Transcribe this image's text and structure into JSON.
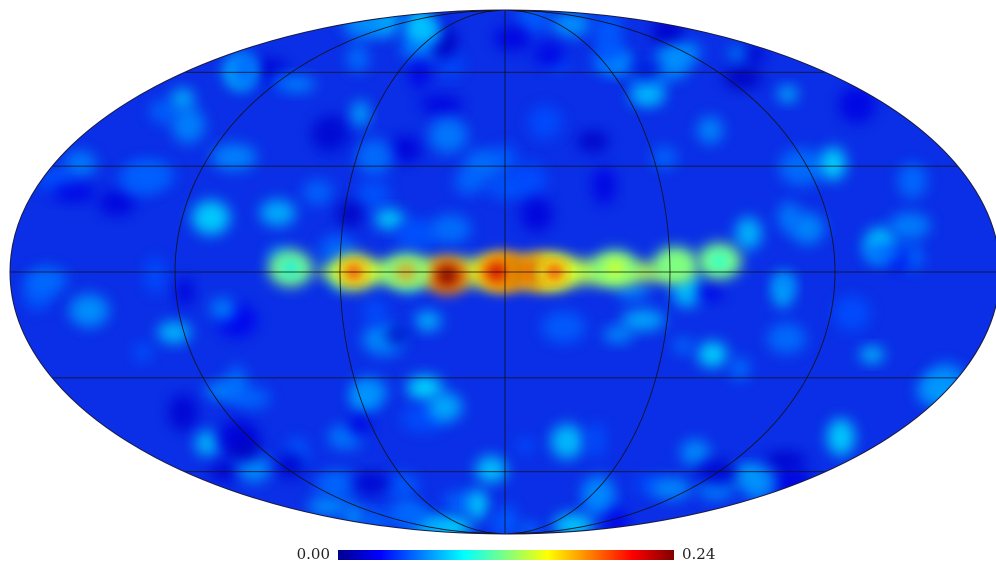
{
  "map": {
    "projection": "mollweide",
    "graticule": {
      "lon_step_deg": 60,
      "lat_step_deg": 30
    },
    "colormap": "jet",
    "features": [
      {
        "lon": 0,
        "lat": 0,
        "width": 260,
        "level": 0.55
      },
      {
        "lon": -12,
        "lat": 0,
        "level": 0.95
      },
      {
        "lon": -18,
        "lat": 0,
        "level": 0.85
      },
      {
        "lon": -1,
        "lat": 0,
        "level": 1.0
      },
      {
        "lon": 3,
        "lat": 0,
        "level": 0.92
      },
      {
        "lon": 21,
        "lat": -1,
        "level": 1.0
      },
      {
        "lon": 36,
        "lat": 0,
        "level": 0.75
      },
      {
        "lon": 55,
        "lat": 0,
        "level": 0.85
      },
      {
        "lon": -40,
        "lat": 1,
        "level": 0.6
      },
      {
        "lon": -62,
        "lat": 2,
        "level": 0.5
      },
      {
        "lon": -78,
        "lat": 3,
        "level": 0.4
      },
      {
        "lon": 78,
        "lat": 1,
        "level": 0.35
      }
    ]
  },
  "colorbar": {
    "min_label": "0.00",
    "max_label": "0.24",
    "colors": [
      "#00008f",
      "#0000ff",
      "#0080ff",
      "#00ffff",
      "#80ff80",
      "#ffff00",
      "#ff8000",
      "#ff0000",
      "#800000"
    ]
  }
}
